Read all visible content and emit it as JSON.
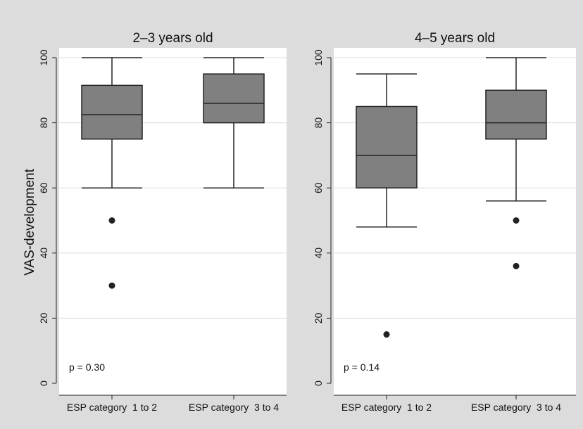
{
  "chart_data": {
    "type": "box",
    "ylabel": "VAS-development",
    "ylim": [
      0,
      100
    ],
    "yticks": [
      0,
      20,
      40,
      60,
      80,
      100
    ],
    "grid": true,
    "colors": {
      "box_fill": "#808080",
      "panel": "#ffffff",
      "background": "#dcdcdc",
      "grid": "#dcdcdc",
      "line": "#222222"
    },
    "panels": [
      {
        "title": "2–3 years old",
        "annotation": "p = 0.30",
        "categories": [
          "ESP category  1 to 2",
          "ESP category  3 to 4"
        ],
        "boxes": [
          {
            "whisker_low": 60,
            "q1": 75,
            "median": 82.5,
            "q3": 91.5,
            "whisker_high": 100,
            "outliers": [
              50,
              30
            ]
          },
          {
            "whisker_low": 60,
            "q1": 80,
            "median": 86,
            "q3": 95,
            "whisker_high": 100,
            "outliers": []
          }
        ]
      },
      {
        "title": "4–5 years old",
        "annotation": "p = 0.14",
        "categories": [
          "ESP category  1 to 2",
          "ESP category  3 to 4"
        ],
        "boxes": [
          {
            "whisker_low": 48,
            "q1": 60,
            "median": 70,
            "q3": 85,
            "whisker_high": 95,
            "outliers": [
              15
            ]
          },
          {
            "whisker_low": 56,
            "q1": 75,
            "median": 80,
            "q3": 90,
            "whisker_high": 100,
            "outliers": [
              50,
              36
            ]
          }
        ]
      }
    ]
  }
}
